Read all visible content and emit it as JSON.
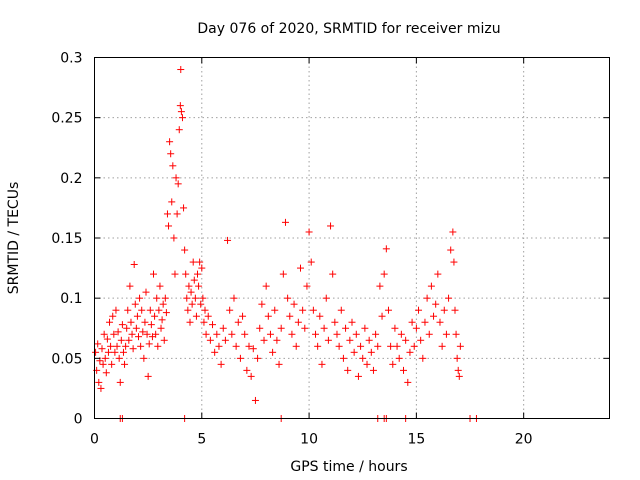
{
  "chart_data": {
    "type": "scatter",
    "title": "Day 076 of 2020, SRMTID for receiver mizu",
    "xlabel": "GPS time / hours",
    "ylabel": "SRMTID / TECUs",
    "xlim": [
      0,
      24
    ],
    "ylim": [
      0,
      0.3
    ],
    "xticks": [
      0,
      5,
      10,
      15,
      20
    ],
    "xtick_labels": [
      "0",
      "5",
      "10",
      "15",
      "20"
    ],
    "yticks": [
      0,
      0.05,
      0.1,
      0.15,
      0.2,
      0.25,
      0.3
    ],
    "ytick_labels": [
      "0",
      "0.05",
      "0.1",
      "0.15",
      "0.2",
      "0.25",
      "0.3"
    ],
    "grid": true,
    "marker": "plus",
    "color": "#ff0000",
    "series": [
      {
        "name": "SRMTID",
        "points": [
          [
            0.05,
            0.055
          ],
          [
            0.1,
            0.04
          ],
          [
            0.15,
            0.062
          ],
          [
            0.2,
            0.03
          ],
          [
            0.25,
            0.048
          ],
          [
            0.3,
            0.025
          ],
          [
            0.35,
            0.058
          ],
          [
            0.4,
            0.045
          ],
          [
            0.45,
            0.07
          ],
          [
            0.5,
            0.05
          ],
          [
            0.55,
            0.038
          ],
          [
            0.6,
            0.066
          ],
          [
            0.65,
            0.055
          ],
          [
            0.7,
            0.08
          ],
          [
            0.75,
            0.06
          ],
          [
            0.8,
            0.045
          ],
          [
            0.85,
            0.085
          ],
          [
            0.9,
            0.07
          ],
          [
            0.95,
            0.055
          ],
          [
            1.0,
            0.09
          ],
          [
            1.05,
            0.06
          ],
          [
            1.1,
            0.072
          ],
          [
            1.15,
            0.05
          ],
          [
            1.2,
            0.03
          ],
          [
            1.25,
            0.065
          ],
          [
            1.3,
            0.078
          ],
          [
            1.35,
            0.055
          ],
          [
            1.4,
            0.045
          ],
          [
            1.45,
            0.06
          ],
          [
            1.5,
            0.075
          ],
          [
            1.55,
            0.09
          ],
          [
            1.6,
            0.065
          ],
          [
            1.65,
            0.11
          ],
          [
            1.7,
            0.08
          ],
          [
            1.75,
            0.07
          ],
          [
            1.8,
            0.058
          ],
          [
            1.85,
            0.128
          ],
          [
            1.9,
            0.095
          ],
          [
            1.95,
            0.075
          ],
          [
            2.0,
            0.085
          ],
          [
            2.05,
            0.068
          ],
          [
            2.1,
            0.1
          ],
          [
            2.15,
            0.06
          ],
          [
            2.2,
            0.09
          ],
          [
            2.25,
            0.072
          ],
          [
            2.3,
            0.05
          ],
          [
            2.35,
            0.08
          ],
          [
            2.4,
            0.105
          ],
          [
            2.45,
            0.07
          ],
          [
            2.5,
            0.035
          ],
          [
            2.55,
            0.062
          ],
          [
            2.6,
            0.09
          ],
          [
            2.65,
            0.078
          ],
          [
            2.7,
            0.068
          ],
          [
            2.75,
            0.12
          ],
          [
            2.8,
            0.085
          ],
          [
            2.85,
            0.07
          ],
          [
            2.9,
            0.1
          ],
          [
            2.95,
            0.06
          ],
          [
            3.0,
            0.09
          ],
          [
            3.05,
            0.11
          ],
          [
            3.1,
            0.075
          ],
          [
            3.15,
            0.082
          ],
          [
            3.2,
            0.095
          ],
          [
            3.25,
            0.065
          ],
          [
            3.3,
            0.1
          ],
          [
            3.35,
            0.088
          ],
          [
            3.4,
            0.17
          ],
          [
            3.45,
            0.16
          ],
          [
            3.5,
            0.23
          ],
          [
            3.55,
            0.22
          ],
          [
            3.6,
            0.18
          ],
          [
            3.65,
            0.21
          ],
          [
            3.7,
            0.15
          ],
          [
            3.75,
            0.12
          ],
          [
            3.8,
            0.2
          ],
          [
            3.85,
            0.17
          ],
          [
            3.9,
            0.195
          ],
          [
            3.95,
            0.24
          ],
          [
            4.0,
            0.26
          ],
          [
            4.02,
            0.29
          ],
          [
            4.05,
            0.255
          ],
          [
            4.1,
            0.25
          ],
          [
            4.15,
            0.175
          ],
          [
            4.2,
            0.14
          ],
          [
            4.25,
            0.12
          ],
          [
            4.3,
            0.1
          ],
          [
            4.35,
            0.09
          ],
          [
            4.4,
            0.11
          ],
          [
            4.45,
            0.08
          ],
          [
            4.5,
            0.105
          ],
          [
            4.55,
            0.095
          ],
          [
            4.6,
            0.13
          ],
          [
            4.65,
            0.115
          ],
          [
            4.7,
            0.1
          ],
          [
            4.75,
            0.085
          ],
          [
            4.8,
            0.12
          ],
          [
            4.85,
            0.11
          ],
          [
            4.9,
            0.13
          ],
          [
            4.95,
            0.095
          ],
          [
            5.0,
            0.125
          ],
          [
            5.05,
            0.1
          ],
          [
            5.1,
            0.08
          ],
          [
            5.15,
            0.09
          ],
          [
            5.2,
            0.07
          ],
          [
            5.3,
            0.085
          ],
          [
            5.4,
            0.065
          ],
          [
            5.5,
            0.078
          ],
          [
            5.6,
            0.055
          ],
          [
            5.7,
            0.07
          ],
          [
            5.8,
            0.06
          ],
          [
            5.9,
            0.045
          ],
          [
            6.0,
            0.075
          ],
          [
            6.1,
            0.065
          ],
          [
            6.2,
            0.148
          ],
          [
            6.3,
            0.09
          ],
          [
            6.4,
            0.07
          ],
          [
            6.5,
            0.1
          ],
          [
            6.6,
            0.06
          ],
          [
            6.7,
            0.08
          ],
          [
            6.8,
            0.05
          ],
          [
            6.9,
            0.085
          ],
          [
            7.0,
            0.07
          ],
          [
            7.1,
            0.04
          ],
          [
            7.2,
            0.06
          ],
          [
            7.3,
            0.035
          ],
          [
            7.4,
            0.058
          ],
          [
            7.5,
            0.015
          ],
          [
            7.6,
            0.05
          ],
          [
            7.7,
            0.075
          ],
          [
            7.8,
            0.095
          ],
          [
            7.9,
            0.065
          ],
          [
            8.0,
            0.11
          ],
          [
            8.1,
            0.085
          ],
          [
            8.2,
            0.07
          ],
          [
            8.3,
            0.055
          ],
          [
            8.4,
            0.09
          ],
          [
            8.5,
            0.065
          ],
          [
            8.6,
            0.045
          ],
          [
            8.7,
            0.075
          ],
          [
            8.8,
            0.12
          ],
          [
            8.9,
            0.163
          ],
          [
            9.0,
            0.1
          ],
          [
            9.1,
            0.085
          ],
          [
            9.2,
            0.07
          ],
          [
            9.3,
            0.095
          ],
          [
            9.4,
            0.06
          ],
          [
            9.5,
            0.08
          ],
          [
            9.6,
            0.125
          ],
          [
            9.7,
            0.09
          ],
          [
            9.8,
            0.075
          ],
          [
            9.9,
            0.11
          ],
          [
            10.0,
            0.155
          ],
          [
            10.1,
            0.13
          ],
          [
            10.2,
            0.09
          ],
          [
            10.3,
            0.07
          ],
          [
            10.4,
            0.06
          ],
          [
            10.5,
            0.085
          ],
          [
            10.6,
            0.045
          ],
          [
            10.7,
            0.075
          ],
          [
            10.8,
            0.1
          ],
          [
            10.9,
            0.065
          ],
          [
            11.0,
            0.16
          ],
          [
            11.1,
            0.12
          ],
          [
            11.2,
            0.08
          ],
          [
            11.3,
            0.07
          ],
          [
            11.4,
            0.06
          ],
          [
            11.5,
            0.09
          ],
          [
            11.6,
            0.05
          ],
          [
            11.7,
            0.075
          ],
          [
            11.8,
            0.04
          ],
          [
            11.9,
            0.065
          ],
          [
            12.0,
            0.08
          ],
          [
            12.1,
            0.055
          ],
          [
            12.2,
            0.07
          ],
          [
            12.3,
            0.035
          ],
          [
            12.4,
            0.06
          ],
          [
            12.5,
            0.05
          ],
          [
            12.6,
            0.075
          ],
          [
            12.7,
            0.045
          ],
          [
            12.8,
            0.065
          ],
          [
            12.9,
            0.055
          ],
          [
            13.0,
            0.04
          ],
          [
            13.1,
            0.07
          ],
          [
            13.2,
            0.06
          ],
          [
            13.3,
            0.11
          ],
          [
            13.4,
            0.085
          ],
          [
            13.5,
            0.12
          ],
          [
            13.6,
            0.141
          ],
          [
            13.7,
            0.09
          ],
          [
            13.8,
            0.06
          ],
          [
            13.9,
            0.045
          ],
          [
            14.0,
            0.075
          ],
          [
            14.1,
            0.06
          ],
          [
            14.2,
            0.05
          ],
          [
            14.3,
            0.07
          ],
          [
            14.4,
            0.04
          ],
          [
            14.5,
            0.065
          ],
          [
            14.6,
            0.03
          ],
          [
            14.7,
            0.055
          ],
          [
            14.8,
            0.08
          ],
          [
            14.9,
            0.06
          ],
          [
            15.0,
            0.075
          ],
          [
            15.1,
            0.09
          ],
          [
            15.2,
            0.065
          ],
          [
            15.3,
            0.05
          ],
          [
            15.4,
            0.08
          ],
          [
            15.5,
            0.1
          ],
          [
            15.6,
            0.07
          ],
          [
            15.7,
            0.11
          ],
          [
            15.8,
            0.085
          ],
          [
            15.9,
            0.095
          ],
          [
            16.0,
            0.12
          ],
          [
            16.1,
            0.08
          ],
          [
            16.2,
            0.06
          ],
          [
            16.3,
            0.09
          ],
          [
            16.4,
            0.07
          ],
          [
            16.5,
            0.1
          ],
          [
            16.6,
            0.14
          ],
          [
            16.7,
            0.155
          ],
          [
            16.75,
            0.13
          ],
          [
            16.8,
            0.09
          ],
          [
            16.85,
            0.07
          ],
          [
            16.9,
            0.05
          ],
          [
            16.95,
            0.04
          ],
          [
            17.0,
            0.035
          ],
          [
            17.05,
            0.06
          ]
        ]
      }
    ],
    "zero_points_x": [
      1.2,
      1.3,
      4.2,
      8.7,
      13.2,
      13.5,
      13.6,
      14.5,
      17.5,
      17.8
    ]
  }
}
